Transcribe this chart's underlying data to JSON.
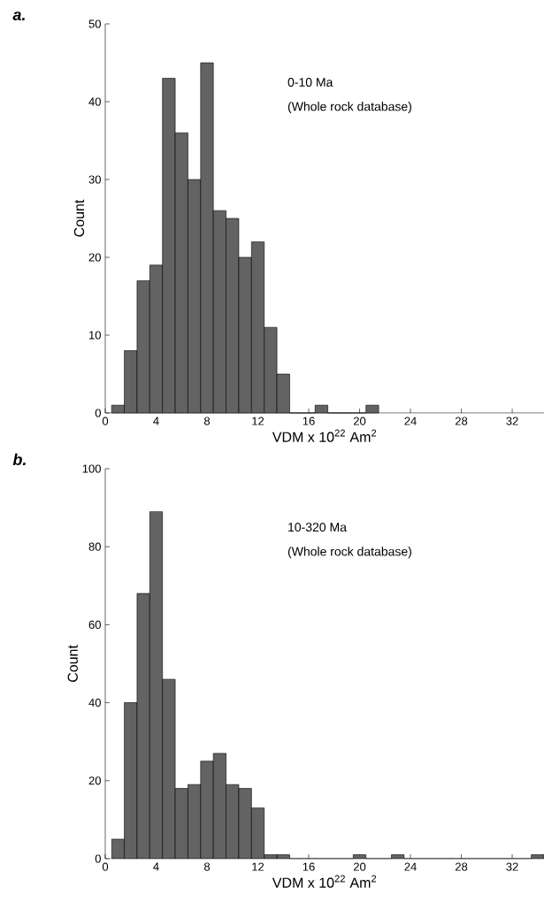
{
  "chart_data": [
    {
      "type": "histogram",
      "title": "a.",
      "xlabel": "VDM x 10$^{22}$ Am$^{2}$",
      "ylabel": "Count",
      "annotations": [
        "0-10 Ma",
        "(Whole rock database)"
      ],
      "color": "#636363",
      "bins": [
        0.5,
        1.5,
        2.5,
        3.5,
        4.5,
        5.5,
        6.5,
        7.5,
        8.5,
        9.5,
        10.5,
        11.5,
        12.5,
        13.5,
        14.5,
        15.5,
        16.5,
        17.5,
        18.5,
        19.5,
        20.5,
        21.5
      ],
      "values": [
        1,
        8,
        17,
        19,
        43,
        36,
        30,
        45,
        26,
        25,
        20,
        22,
        11,
        5,
        0,
        0,
        1,
        0,
        0,
        0,
        1
      ],
      "xlim": [
        0,
        34.5
      ],
      "ylim": [
        0,
        50
      ],
      "xticks": [
        0,
        4,
        8,
        12,
        16,
        20,
        24,
        28,
        32
      ],
      "yticks": [
        0,
        10,
        20,
        30,
        40,
        50
      ]
    },
    {
      "type": "histogram",
      "title": "b.",
      "xlabel": "VDM x 10$^{22}$ Am$^{2}$",
      "ylabel": "Count",
      "annotations": [
        "10-320 Ma",
        "(Whole rock database)"
      ],
      "color": "#636363",
      "bins": [
        0.5,
        1.5,
        2.5,
        3.5,
        4.5,
        5.5,
        6.5,
        7.5,
        8.5,
        9.5,
        10.5,
        11.5,
        12.5,
        13.5,
        14.5,
        15.5,
        16.5,
        17.5,
        18.5,
        19.5,
        20.5,
        21.5,
        22.5,
        23.5,
        24.5,
        25.5,
        26.5,
        27.5,
        28.5,
        29.5,
        30.5,
        31.5,
        32.5,
        33.5,
        34.5
      ],
      "values": [
        5,
        40,
        68,
        89,
        46,
        18,
        19,
        25,
        27,
        19,
        18,
        13,
        1,
        1,
        0,
        0,
        0,
        0,
        0,
        1,
        0,
        0,
        1,
        0,
        0,
        0,
        0,
        0,
        0,
        0,
        0,
        0,
        0,
        1
      ],
      "xlim": [
        0,
        34.5
      ],
      "ylim": [
        0,
        100
      ],
      "xticks": [
        0,
        4,
        8,
        12,
        16,
        20,
        24,
        28,
        32
      ],
      "yticks": [
        0,
        20,
        40,
        60,
        80,
        100
      ]
    }
  ]
}
